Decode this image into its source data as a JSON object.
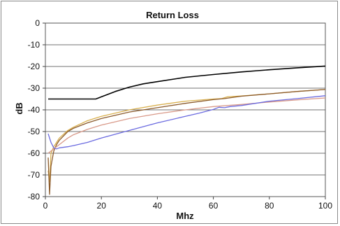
{
  "chart_data": {
    "type": "line",
    "title": "Return Loss",
    "xlabel": "Mhz",
    "ylabel": "dB",
    "xlim": [
      0,
      100
    ],
    "ylim": [
      -80,
      0
    ],
    "xticks": [
      0,
      20,
      40,
      60,
      80,
      100
    ],
    "yticks": [
      0,
      -10,
      -20,
      -30,
      -40,
      -50,
      -60,
      -70,
      -80
    ],
    "grid": "horizontal",
    "legend": "none",
    "series": [
      {
        "color": "#000000",
        "points": [
          [
            1,
            -35
          ],
          [
            5,
            -35
          ],
          [
            10,
            -35
          ],
          [
            15,
            -35
          ],
          [
            18,
            -35
          ],
          [
            20,
            -34
          ],
          [
            25,
            -31.5
          ],
          [
            30,
            -29.5
          ],
          [
            35,
            -28
          ],
          [
            40,
            -27
          ],
          [
            50,
            -25
          ],
          [
            60,
            -23.7
          ],
          [
            70,
            -22.5
          ],
          [
            80,
            -21.5
          ],
          [
            90,
            -20.6
          ],
          [
            100,
            -19.8
          ]
        ]
      },
      {
        "color": "#d9b04f",
        "points": [
          [
            1,
            -68
          ],
          [
            1.5,
            -73
          ],
          [
            2,
            -60
          ],
          [
            3,
            -57
          ],
          [
            4,
            -55
          ],
          [
            5,
            -53
          ],
          [
            8,
            -49.5
          ],
          [
            10,
            -48
          ],
          [
            15,
            -45
          ],
          [
            20,
            -43
          ],
          [
            30,
            -40
          ],
          [
            40,
            -37.8
          ],
          [
            50,
            -36
          ],
          [
            60,
            -35
          ],
          [
            63,
            -34.8
          ],
          [
            65,
            -34
          ],
          [
            70,
            -33.6
          ],
          [
            80,
            -32.6
          ],
          [
            90,
            -31.5
          ],
          [
            100,
            -30.6
          ]
        ]
      },
      {
        "color": "#8b5a2b",
        "points": [
          [
            1,
            -62
          ],
          [
            1.5,
            -79
          ],
          [
            2,
            -66
          ],
          [
            3,
            -59
          ],
          [
            4,
            -56
          ],
          [
            5,
            -54
          ],
          [
            8,
            -50
          ],
          [
            10,
            -48.5
          ],
          [
            15,
            -46
          ],
          [
            20,
            -44
          ],
          [
            30,
            -41
          ],
          [
            40,
            -39
          ],
          [
            50,
            -37
          ],
          [
            60,
            -35.3
          ],
          [
            64,
            -34.8
          ],
          [
            70,
            -33.7
          ],
          [
            80,
            -32.6
          ],
          [
            90,
            -31.5
          ],
          [
            100,
            -30.6
          ]
        ]
      },
      {
        "color": "#d99a8a",
        "points": [
          [
            1,
            -60
          ],
          [
            2,
            -59
          ],
          [
            3,
            -58
          ],
          [
            5,
            -56
          ],
          [
            8,
            -53
          ],
          [
            10,
            -51.5
          ],
          [
            15,
            -49
          ],
          [
            20,
            -47
          ],
          [
            30,
            -44
          ],
          [
            40,
            -41.8
          ],
          [
            50,
            -40
          ],
          [
            60,
            -38.5
          ],
          [
            70,
            -37.5
          ],
          [
            80,
            -36.4
          ],
          [
            90,
            -35.4
          ],
          [
            100,
            -34.5
          ]
        ]
      },
      {
        "color": "#6b6be0",
        "points": [
          [
            1,
            -51
          ],
          [
            2,
            -55
          ],
          [
            3,
            -57.5
          ],
          [
            4,
            -58
          ],
          [
            5,
            -57.5
          ],
          [
            8,
            -57
          ],
          [
            10,
            -56.5
          ],
          [
            15,
            -55
          ],
          [
            20,
            -53
          ],
          [
            30,
            -49.5
          ],
          [
            40,
            -46
          ],
          [
            50,
            -43
          ],
          [
            55,
            -41.5
          ],
          [
            60,
            -39.8
          ],
          [
            62,
            -38.8
          ],
          [
            64,
            -39
          ],
          [
            66,
            -38.5
          ],
          [
            70,
            -38
          ],
          [
            80,
            -36
          ],
          [
            90,
            -34.8
          ],
          [
            100,
            -33.5
          ]
        ]
      }
    ]
  }
}
